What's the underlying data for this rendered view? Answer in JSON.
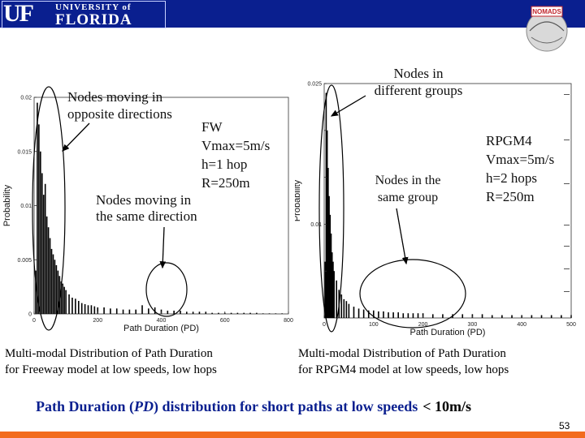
{
  "header": {
    "uf_mark": "UF",
    "university_line": "UNIVERSITY of",
    "florida_line": "FLORIDA",
    "logo": "NOMADS"
  },
  "left_panel": {
    "callout_opposite": [
      "Nodes moving in",
      "opposite directions"
    ],
    "callout_same": [
      "Nodes moving in",
      "the same direction"
    ],
    "params": [
      "FW",
      "Vmax=5m/s",
      "h=1 hop",
      "R=250m"
    ],
    "caption": [
      "Multi-modal Distribution of Path Duration",
      "for Freeway model at low speeds, low hops"
    ]
  },
  "right_panel": {
    "callout_different": [
      "Nodes in",
      "different groups"
    ],
    "callout_same": [
      "Nodes in the",
      "same group"
    ],
    "params": [
      "RPGM4",
      "Vmax=5m/s",
      "h=2 hops",
      "R=250m"
    ],
    "caption": [
      "Multi-modal Distribution of Path Duration",
      "for RPGM4 model at low speeds, low hops"
    ]
  },
  "footer": {
    "text_prefix": "Path Duration (",
    "text_em": "PD",
    "text_suffix": ") distribution for short paths at low speeds",
    "text_limit": "< 10m/s",
    "page_number": "53"
  },
  "colors": {
    "header": "#0a1f8f",
    "footer_text": "#0a1f8f",
    "bottom_bar": "#f26b1d",
    "bars": "#000000"
  },
  "chart_data": [
    {
      "type": "bar",
      "model": "Freeway",
      "xlabel": "Path Duration (PD)",
      "ylabel": "Probability",
      "xlim": [
        0,
        800
      ],
      "ylim": [
        0,
        0.02
      ],
      "xticks": [
        0,
        200,
        400,
        600,
        800
      ],
      "xtick_labels": [
        "0",
        "200",
        "400",
        "600",
        "800"
      ],
      "yticks": [
        0,
        0.005,
        0.01,
        0.015,
        0.02
      ],
      "ytick_labels": [
        "0",
        "0.005",
        "0.01",
        "0.015",
        "0.02"
      ],
      "x": [
        5,
        10,
        15,
        20,
        25,
        30,
        35,
        40,
        45,
        50,
        55,
        60,
        65,
        70,
        75,
        80,
        85,
        90,
        95,
        100,
        110,
        120,
        130,
        140,
        150,
        160,
        170,
        180,
        190,
        200,
        220,
        240,
        260,
        280,
        300,
        320,
        340,
        360,
        380,
        400,
        420,
        440,
        460,
        480,
        500,
        520,
        540,
        560,
        580,
        600,
        620,
        640,
        660,
        680,
        700,
        720,
        740,
        760,
        780
      ],
      "values": [
        0.004,
        0.0195,
        0.0175,
        0.015,
        0.013,
        0.011,
        0.012,
        0.009,
        0.008,
        0.007,
        0.006,
        0.0055,
        0.005,
        0.0045,
        0.004,
        0.0035,
        0.003,
        0.0028,
        0.0025,
        0.0022,
        0.0018,
        0.0015,
        0.0014,
        0.0012,
        0.001,
        0.0009,
        0.0008,
        0.0008,
        0.0007,
        0.0006,
        0.0006,
        0.0005,
        0.0005,
        0.0004,
        0.0004,
        0.0004,
        0.0008,
        0.0005,
        0.0006,
        0.0004,
        0.0003,
        0.0003,
        0.0003,
        0.0002,
        0.0002,
        0.0002,
        0.0002,
        0.0001,
        0.0001,
        0.0001,
        0.0001,
        0.0001,
        0.0001,
        0.0001,
        0.0001,
        5e-05,
        5e-05,
        5e-05,
        5e-05
      ]
    },
    {
      "type": "bar",
      "model": "RPGM4",
      "xlabel": "Path Duration (PD)",
      "ylabel": "Probability",
      "xlim": [
        0,
        500
      ],
      "ylim": [
        0,
        0.025
      ],
      "xticks": [
        0,
        100,
        200,
        300,
        400,
        500
      ],
      "xtick_labels": [
        "0",
        "100",
        "200",
        "300",
        "400",
        "500"
      ],
      "yticks": [
        0.005,
        0.01,
        0.015,
        0.02,
        0.025
      ],
      "ytick_labels": [
        "",
        "0.01",
        "",
        "",
        "0.025"
      ],
      "x": [
        2,
        4,
        6,
        8,
        10,
        12,
        14,
        16,
        18,
        20,
        25,
        30,
        35,
        40,
        45,
        50,
        60,
        70,
        80,
        90,
        100,
        110,
        120,
        130,
        140,
        150,
        160,
        170,
        180,
        190,
        200,
        220,
        240,
        260,
        280,
        300,
        320,
        340,
        360,
        380,
        400,
        420,
        440,
        460,
        480,
        500
      ],
      "values": [
        0.006,
        0.024,
        0.02,
        0.016,
        0.013,
        0.011,
        0.009,
        0.007,
        0.006,
        0.005,
        0.004,
        0.003,
        0.0025,
        0.002,
        0.0018,
        0.0015,
        0.0012,
        0.001,
        0.0009,
        0.0008,
        0.0008,
        0.0007,
        0.0007,
        0.0006,
        0.0006,
        0.0006,
        0.0005,
        0.0005,
        0.0005,
        0.0005,
        0.0005,
        0.0004,
        0.0004,
        0.0004,
        0.0004,
        0.0004,
        0.0004,
        0.0003,
        0.0003,
        0.0003,
        0.0003,
        0.0003,
        0.0003,
        0.0003,
        0.0003,
        0.0003
      ]
    }
  ]
}
